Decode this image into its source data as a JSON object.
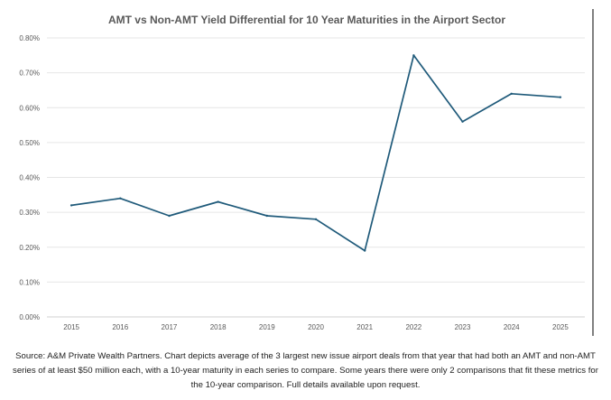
{
  "chart_data": {
    "type": "line",
    "title": "AMT vs Non-AMT Yield Differential for 10 Year Maturities in the Airport Sector",
    "xlabel": "",
    "ylabel": "",
    "categories": [
      "2015",
      "2016",
      "2017",
      "2018",
      "2019",
      "2020",
      "2021",
      "2022",
      "2023",
      "2024",
      "2025"
    ],
    "series": [
      {
        "values": [
          0.32,
          0.34,
          0.29,
          0.33,
          0.29,
          0.28,
          0.19,
          0.75,
          0.56,
          0.64,
          0.63
        ],
        "color": "#1f5a7a"
      }
    ],
    "ylim": [
      0,
      0.8
    ],
    "yticks": [
      "0.00%",
      "0.10%",
      "0.20%",
      "0.30%",
      "0.40%",
      "0.50%",
      "0.60%",
      "0.70%",
      "0.80%"
    ],
    "ytick_values": [
      0,
      0.1,
      0.2,
      0.3,
      0.4,
      0.5,
      0.6,
      0.7,
      0.8
    ],
    "grid": true,
    "legend": "none"
  },
  "caption": "Source: A&M Private Wealth Partners. Chart depicts average of the 3 largest new issue airport deals from that year that had both an AMT and non-AMT series of at least $50 million each, with a 10-year maturity in each series to compare. Some years there were only 2 comparisons that fit these metrics for the 10-year comparison.  Full details available upon request."
}
